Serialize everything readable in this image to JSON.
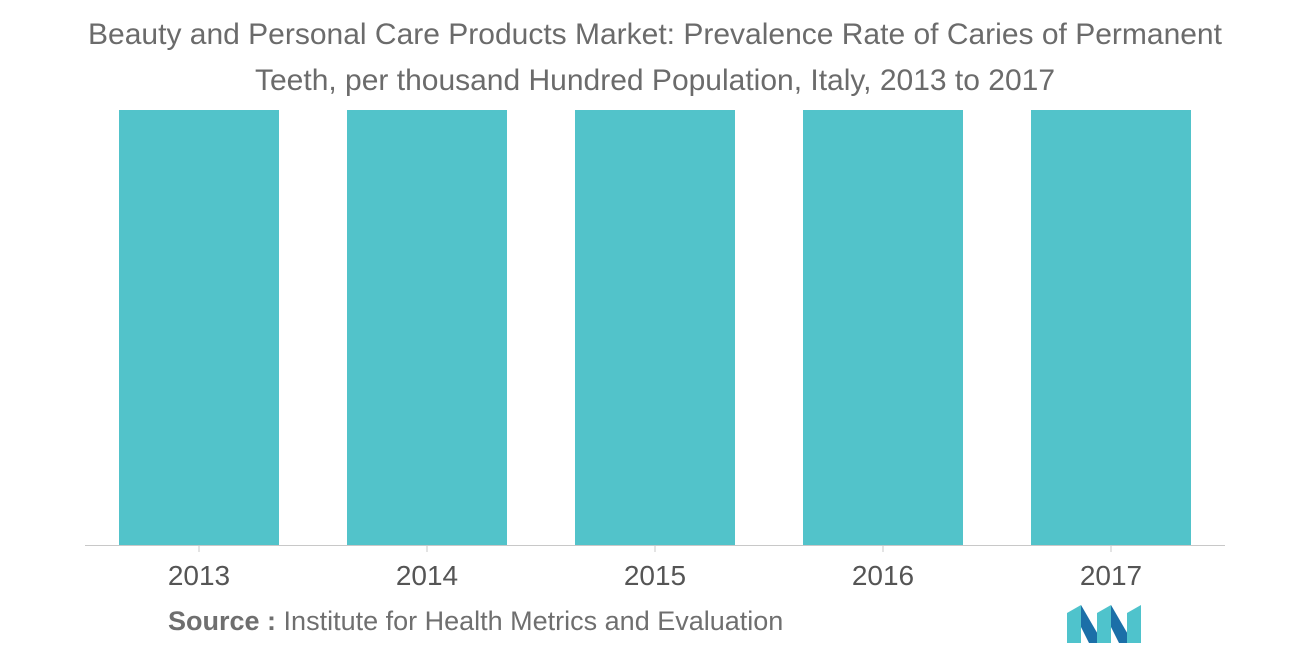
{
  "title_line1": "Beauty and Personal Care Products Market: Prevalence Rate of Caries of Permanent",
  "title_line2": "Teeth, per thousand Hundred Population, Italy, 2013 to 2017",
  "source_label": "Source :",
  "source_text": "Institute for Health Metrics and Evaluation",
  "colors": {
    "bar": "#52c3ca",
    "axis": "#c8c8c8",
    "text": "#6b6b6b",
    "logo_dark": "#1b6fa8",
    "logo_light": "#4fc3cc"
  },
  "chart_data": {
    "type": "bar",
    "categories": [
      "2013",
      "2014",
      "2015",
      "2016",
      "2017"
    ],
    "values": [
      100,
      100,
      100,
      100,
      100
    ],
    "title": "Beauty and Personal Care Products Market: Prevalence Rate of Caries of Permanent Teeth, per thousand Hundred Population, Italy, 2013 to 2017",
    "xlabel": "",
    "ylabel": "",
    "ylim": [
      0,
      100
    ],
    "grid": false,
    "legend": "none"
  }
}
